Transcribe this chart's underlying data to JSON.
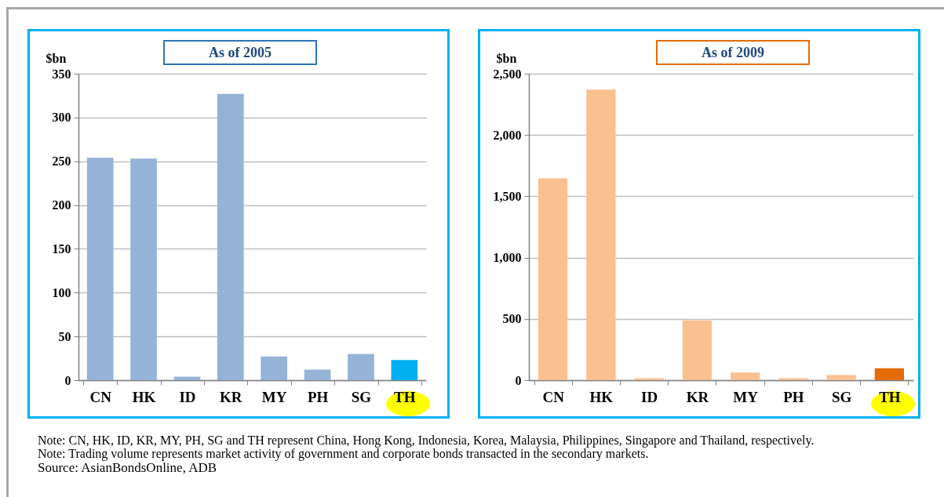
{
  "chart_data": [
    {
      "type": "bar",
      "title": "As of 2005",
      "ylabel": "$bn",
      "categories": [
        "CN",
        "HK",
        "ID",
        "KR",
        "MY",
        "PH",
        "SG",
        "TH"
      ],
      "values": [
        254,
        253,
        4,
        327,
        27,
        12,
        30,
        23
      ],
      "colors": [
        "#95b3d7",
        "#95b3d7",
        "#95b3d7",
        "#95b3d7",
        "#95b3d7",
        "#95b3d7",
        "#95b3d7",
        "#00b0f0"
      ],
      "ylim": [
        0,
        350
      ],
      "yticks": [
        0,
        50,
        100,
        150,
        200,
        250,
        300,
        350
      ],
      "grid": "y"
    },
    {
      "type": "bar",
      "title": "As of 2009",
      "ylabel": "$bn",
      "categories": [
        "CN",
        "HK",
        "ID",
        "KR",
        "MY",
        "PH",
        "SG",
        "TH"
      ],
      "values": [
        1647,
        2370,
        16,
        487,
        62,
        16,
        41,
        98
      ],
      "colors": [
        "#fac090",
        "#fac090",
        "#fac090",
        "#fac090",
        "#fac090",
        "#fac090",
        "#fac090",
        "#e36c09"
      ],
      "ylim": [
        0,
        2500
      ],
      "yticks": [
        0,
        500,
        {
          "value": 1000,
          "label": "1,000"
        },
        {
          "value": 1500,
          "label": "1,500"
        },
        {
          "value": 2000,
          "label": "2,000"
        },
        {
          "value": 2500,
          "label": "2,500"
        }
      ],
      "grid": "y",
      "annotations": [
        "Note: CN, HK, ID, KR, MY, PH, SG and TH represent China, Hong Kong, Indonesia, Korea, Malaysia, Philippines, Singapore and Thailand, respectively.",
        "Note: Trading volume represents market activity of government and corporate bonds transacted in the secondary markets.",
        "Source: AsianBondsOnline, ADB"
      ]
    }
  ]
}
